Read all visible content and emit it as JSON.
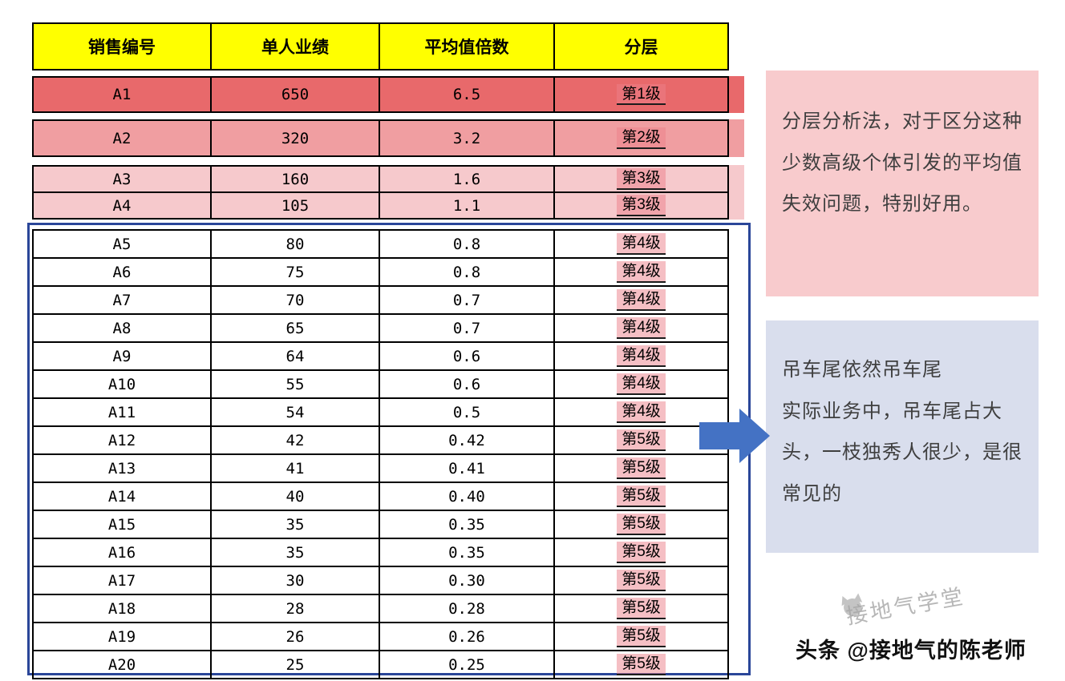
{
  "chart_data": {
    "type": "table",
    "title": "",
    "columns": [
      "销售编号",
      "单人业绩",
      "平均值倍数",
      "分层"
    ],
    "rows": [
      [
        "A1",
        "650",
        "6.5",
        "第1级"
      ],
      [
        "A2",
        "320",
        "3.2",
        "第2级"
      ],
      [
        "A3",
        "160",
        "1.6",
        "第3级"
      ],
      [
        "A4",
        "105",
        "1.1",
        "第3级"
      ],
      [
        "A5",
        "80",
        "0.8",
        "第4级"
      ],
      [
        "A6",
        "75",
        "0.8",
        "第4级"
      ],
      [
        "A7",
        "70",
        "0.7",
        "第4级"
      ],
      [
        "A8",
        "65",
        "0.7",
        "第4级"
      ],
      [
        "A9",
        "64",
        "0.6",
        "第4级"
      ],
      [
        "A10",
        "55",
        "0.6",
        "第4级"
      ],
      [
        "A11",
        "54",
        "0.5",
        "第4级"
      ],
      [
        "A12",
        "42",
        "0.42",
        "第5级"
      ],
      [
        "A13",
        "41",
        "0.41",
        "第5级"
      ],
      [
        "A14",
        "40",
        "0.40",
        "第5级"
      ],
      [
        "A15",
        "35",
        "0.35",
        "第5级"
      ],
      [
        "A16",
        "35",
        "0.35",
        "第5级"
      ],
      [
        "A17",
        "30",
        "0.30",
        "第5级"
      ],
      [
        "A18",
        "28",
        "0.28",
        "第5级"
      ],
      [
        "A19",
        "26",
        "0.26",
        "第5级"
      ],
      [
        "A20",
        "25",
        "0.25",
        "第5级"
      ]
    ]
  },
  "notes": {
    "pink_note": "分层分析法，对于区分这种少数高级个体引发的平均值失效问题，特别好用。",
    "blue_note_line1": "吊车尾依然吊车尾",
    "blue_note_line2": "实际业务中，吊车尾占大头，一枝独秀人很少，是很常见的"
  },
  "watermark": {
    "diagonal_text": "接地气学堂",
    "credit_text": "头条 @接地气的陈老师"
  },
  "colors": {
    "header_bg": "#FFFF00",
    "tier1_bg": "#E8696B",
    "tier2_bg": "#F09EA1",
    "tier3_bg": "#F6C9CC",
    "tier_hl": "rgba(236,128,138,0.5)",
    "pink_note_bg": "#F8CBCD",
    "blue_note_bg": "#D9DEED",
    "arrow_color": "#4472C4",
    "box_border": "#2A4699"
  }
}
